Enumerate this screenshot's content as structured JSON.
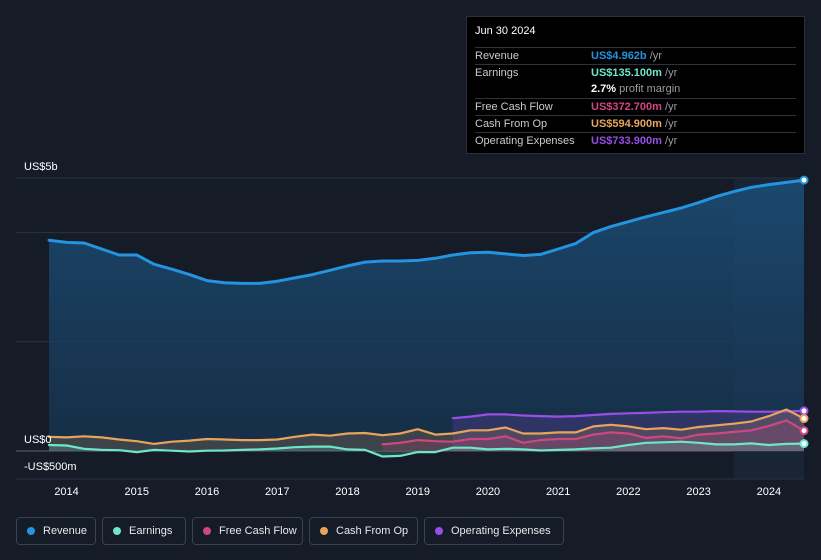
{
  "tooltip": {
    "date": "Jun 30 2024",
    "rows": [
      {
        "label": "Revenue",
        "value": "US$4.962b",
        "unit": "/yr",
        "color": "#2394df"
      },
      {
        "label": "Earnings",
        "value": "US$135.100m",
        "unit": "/yr",
        "color": "#6ee7c8"
      },
      {
        "label": "",
        "value": "2.7%",
        "unit": "profit margin",
        "color": "#ffffff"
      },
      {
        "label": "Free Cash Flow",
        "value": "US$372.700m",
        "unit": "/yr",
        "color": "#d0477f"
      },
      {
        "label": "Cash From Op",
        "value": "US$594.900m",
        "unit": "/yr",
        "color": "#e8a45a"
      },
      {
        "label": "Operating Expenses",
        "value": "US$733.900m",
        "unit": "/yr",
        "color": "#9a4ee8"
      }
    ]
  },
  "legend": [
    {
      "label": "Revenue",
      "color": "#2394df"
    },
    {
      "label": "Earnings",
      "color": "#6ee7c8"
    },
    {
      "label": "Free Cash Flow",
      "color": "#d0477f"
    },
    {
      "label": "Cash From Op",
      "color": "#e8a45a"
    },
    {
      "label": "Operating Expenses",
      "color": "#9a4ee8"
    }
  ],
  "chart_data": {
    "type": "area",
    "title": "",
    "xlabel": "",
    "ylabel": "",
    "y_tick_labels": [
      "US$5b",
      "US$0",
      "-US$500m"
    ],
    "x_tick_labels": [
      "2014",
      "2015",
      "2016",
      "2017",
      "2018",
      "2019",
      "2020",
      "2021",
      "2022",
      "2023",
      "2024"
    ],
    "xlim": [
      2013.75,
      2024.5
    ],
    "ylim": [
      -500,
      5000
    ],
    "units": "US$ millions",
    "series": [
      {
        "name": "Revenue",
        "color": "#2394df",
        "x": [
          2013.75,
          2014.0,
          2014.25,
          2014.5,
          2014.75,
          2015.0,
          2015.25,
          2015.5,
          2015.75,
          2016.0,
          2016.25,
          2016.5,
          2016.75,
          2017.0,
          2017.25,
          2017.5,
          2017.75,
          2018.0,
          2018.25,
          2018.5,
          2018.75,
          2019.0,
          2019.25,
          2019.5,
          2019.75,
          2020.0,
          2020.25,
          2020.5,
          2020.75,
          2021.0,
          2021.25,
          2021.5,
          2021.75,
          2022.0,
          2022.25,
          2022.5,
          2022.75,
          2023.0,
          2023.25,
          2023.5,
          2023.75,
          2024.0,
          2024.25,
          2024.5
        ],
        "values": [
          3860,
          3820,
          3810,
          3700,
          3590,
          3590,
          3420,
          3330,
          3230,
          3120,
          3080,
          3070,
          3070,
          3110,
          3170,
          3230,
          3310,
          3390,
          3460,
          3480,
          3480,
          3490,
          3530,
          3590,
          3630,
          3640,
          3610,
          3580,
          3600,
          3700,
          3800,
          4000,
          4110,
          4200,
          4290,
          4370,
          4450,
          4550,
          4660,
          4750,
          4830,
          4880,
          4920,
          4962
        ]
      },
      {
        "name": "Earnings",
        "color": "#6ee7c8",
        "x": [
          2013.75,
          2014.0,
          2014.25,
          2014.5,
          2014.75,
          2015.0,
          2015.25,
          2015.5,
          2015.75,
          2016.0,
          2016.25,
          2016.5,
          2016.75,
          2017.0,
          2017.25,
          2017.5,
          2017.75,
          2018.0,
          2018.25,
          2018.5,
          2018.75,
          2019.0,
          2019.25,
          2019.5,
          2019.75,
          2020.0,
          2020.25,
          2020.5,
          2020.75,
          2021.0,
          2021.25,
          2021.5,
          2021.75,
          2022.0,
          2022.25,
          2022.5,
          2022.75,
          2023.0,
          2023.25,
          2023.5,
          2023.75,
          2024.0,
          2024.25,
          2024.5
        ],
        "values": [
          110,
          100,
          40,
          20,
          15,
          -20,
          20,
          5,
          -10,
          5,
          10,
          20,
          30,
          45,
          70,
          80,
          80,
          30,
          20,
          -100,
          -90,
          -20,
          -20,
          60,
          60,
          30,
          40,
          30,
          10,
          20,
          30,
          50,
          60,
          110,
          150,
          160,
          170,
          150,
          120,
          120,
          140,
          110,
          130,
          135
        ]
      },
      {
        "name": "Free Cash Flow",
        "color": "#d0477f",
        "x": [
          2018.5,
          2018.75,
          2019.0,
          2019.25,
          2019.5,
          2019.75,
          2020.0,
          2020.25,
          2020.5,
          2020.75,
          2021.0,
          2021.25,
          2021.5,
          2021.75,
          2022.0,
          2022.25,
          2022.5,
          2022.75,
          2023.0,
          2023.25,
          2023.5,
          2023.75,
          2024.0,
          2024.25,
          2024.5
        ],
        "values": [
          120,
          150,
          200,
          180,
          170,
          220,
          220,
          270,
          150,
          200,
          220,
          220,
          300,
          340,
          320,
          240,
          270,
          230,
          300,
          320,
          350,
          380,
          460,
          560,
          373
        ]
      },
      {
        "name": "Cash From Op",
        "color": "#e8a45a",
        "x": [
          2013.75,
          2014.0,
          2014.25,
          2014.5,
          2014.75,
          2015.0,
          2015.25,
          2015.5,
          2015.75,
          2016.0,
          2016.25,
          2016.5,
          2016.75,
          2017.0,
          2017.25,
          2017.5,
          2017.75,
          2018.0,
          2018.25,
          2018.5,
          2018.75,
          2019.0,
          2019.25,
          2019.5,
          2019.75,
          2020.0,
          2020.25,
          2020.5,
          2020.75,
          2021.0,
          2021.25,
          2021.5,
          2021.75,
          2022.0,
          2022.25,
          2022.5,
          2022.75,
          2023.0,
          2023.25,
          2023.5,
          2023.75,
          2024.0,
          2024.25,
          2024.5
        ],
        "values": [
          260,
          250,
          270,
          250,
          210,
          180,
          130,
          170,
          190,
          220,
          210,
          200,
          200,
          210,
          260,
          300,
          280,
          320,
          330,
          290,
          320,
          400,
          300,
          320,
          380,
          380,
          430,
          320,
          320,
          340,
          340,
          450,
          480,
          450,
          400,
          420,
          390,
          440,
          470,
          500,
          540,
          640,
          760,
          595
        ]
      },
      {
        "name": "Operating Expenses",
        "color": "#9a4ee8",
        "x": [
          2019.5,
          2019.75,
          2020.0,
          2020.25,
          2020.5,
          2020.75,
          2021.0,
          2021.25,
          2021.5,
          2021.75,
          2022.0,
          2022.25,
          2022.5,
          2022.75,
          2023.0,
          2023.25,
          2023.5,
          2023.75,
          2024.0,
          2024.25,
          2024.5
        ],
        "values": [
          600,
          630,
          670,
          670,
          650,
          640,
          630,
          640,
          660,
          680,
          690,
          700,
          710,
          720,
          720,
          730,
          725,
          720,
          720,
          725,
          734
        ]
      }
    ]
  }
}
